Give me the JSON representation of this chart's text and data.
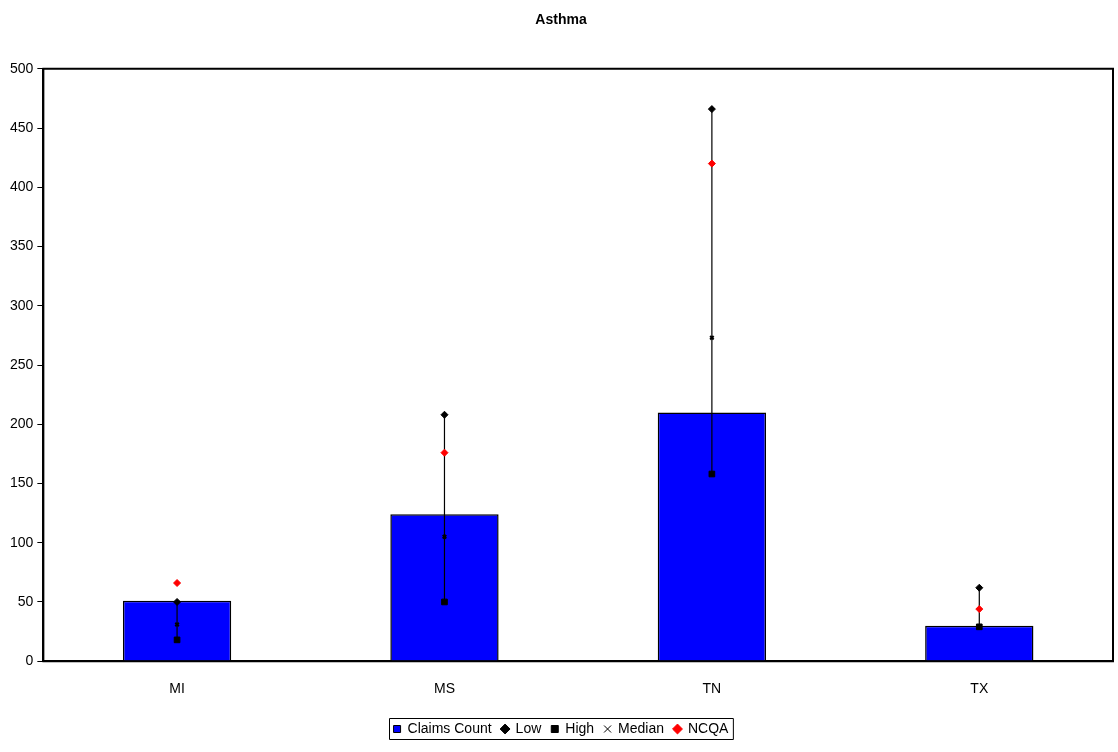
{
  "chart_data": {
    "type": "bar",
    "title": "Asthma",
    "categories": [
      "MI",
      "MS",
      "TN",
      "TX"
    ],
    "series": [
      {
        "name": "Claims Count",
        "type": "bar",
        "color": "#0000ff",
        "values": [
          51,
          124,
          210,
          30
        ]
      },
      {
        "name": "Low",
        "type": "scatter",
        "x": [
          "MI",
          "MS",
          "TN",
          "TX"
        ],
        "color": "#000000",
        "marker": "diamond",
        "values": [
          50,
          208,
          466,
          62
        ]
      },
      {
        "name": "High",
        "type": "scatter",
        "x": [
          "MI",
          "MS",
          "TN",
          "TX"
        ],
        "color": "#000000",
        "marker": "square",
        "values": [
          18,
          50,
          158,
          29
        ]
      },
      {
        "name": "Median",
        "type": "scatter",
        "x": [
          "MI",
          "MS",
          "TN",
          "TX"
        ],
        "color": "#000000",
        "marker": "cross",
        "values": [
          31,
          105,
          273,
          null
        ]
      },
      {
        "name": "NCQA",
        "type": "scatter",
        "x": [
          "MI",
          "MS",
          "TN",
          "TX"
        ],
        "color": "#ff0000",
        "marker": "diamond",
        "values": [
          66,
          176,
          420,
          44
        ]
      },
      {
        "type": "line",
        "x": [
          "MI",
          "MI"
        ],
        "color": "#000000",
        "marker": "none",
        "values": [
          18,
          50
        ]
      },
      {
        "type": "line",
        "x": [
          "MS",
          "MS"
        ],
        "color": "#000000",
        "marker": "none",
        "values": [
          50,
          208
        ]
      },
      {
        "type": "line",
        "x": [
          "TN",
          "TN"
        ],
        "color": "#000000",
        "marker": "none",
        "values": [
          158,
          466
        ]
      },
      {
        "type": "line",
        "x": [
          "TX",
          "TX"
        ],
        "color": "#000000",
        "marker": "none",
        "values": [
          29,
          62
        ]
      }
    ],
    "ylim": [
      0,
      500
    ],
    "yticks": [
      0,
      50,
      100,
      150,
      200,
      250,
      300,
      350,
      400,
      450,
      500
    ],
    "grid": false,
    "legend": "bottom"
  }
}
